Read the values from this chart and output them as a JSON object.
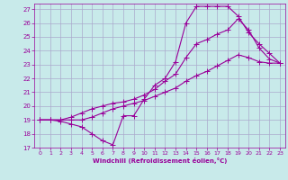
{
  "xlabel": "Windchill (Refroidissement éolien,°C)",
  "bg_color": "#c8eaea",
  "grid_color": "#aaaacc",
  "line_color": "#990099",
  "xlim": [
    -0.5,
    23.5
  ],
  "ylim": [
    17,
    27.4
  ],
  "xticks": [
    0,
    1,
    2,
    3,
    4,
    5,
    6,
    7,
    8,
    9,
    10,
    11,
    12,
    13,
    14,
    15,
    16,
    17,
    18,
    19,
    20,
    21,
    22,
    23
  ],
  "yticks": [
    17,
    18,
    19,
    20,
    21,
    22,
    23,
    24,
    25,
    26,
    27
  ],
  "line1_x": [
    0,
    1,
    2,
    3,
    4,
    5,
    6,
    7,
    8,
    9,
    10,
    11,
    12,
    13,
    14,
    15,
    16,
    17,
    18,
    19,
    20,
    21,
    22,
    23
  ],
  "line1_y": [
    19,
    19,
    18.9,
    18.7,
    18.5,
    18.0,
    17.5,
    17.2,
    19.3,
    19.3,
    20.5,
    21.5,
    22.0,
    23.2,
    26.0,
    27.2,
    27.2,
    27.2,
    27.2,
    26.5,
    25.3,
    24.5,
    23.8,
    23.1
  ],
  "line2_x": [
    0,
    1,
    2,
    3,
    4,
    5,
    6,
    7,
    8,
    9,
    10,
    11,
    12,
    13,
    14,
    15,
    16,
    17,
    18,
    19,
    20,
    21,
    22,
    23
  ],
  "line2_y": [
    19,
    19,
    19,
    19.2,
    19.5,
    19.8,
    20.0,
    20.2,
    20.3,
    20.5,
    20.8,
    21.2,
    21.8,
    22.3,
    23.5,
    24.5,
    24.8,
    25.2,
    25.5,
    26.3,
    25.5,
    24.2,
    23.4,
    23.1
  ],
  "line3_x": [
    0,
    1,
    2,
    3,
    4,
    5,
    6,
    7,
    8,
    9,
    10,
    11,
    12,
    13,
    14,
    15,
    16,
    17,
    18,
    19,
    20,
    21,
    22,
    23
  ],
  "line3_y": [
    19,
    19,
    19,
    19,
    19,
    19.2,
    19.5,
    19.8,
    20.0,
    20.2,
    20.4,
    20.7,
    21.0,
    21.3,
    21.8,
    22.2,
    22.5,
    22.9,
    23.3,
    23.7,
    23.5,
    23.2,
    23.1,
    23.1
  ]
}
